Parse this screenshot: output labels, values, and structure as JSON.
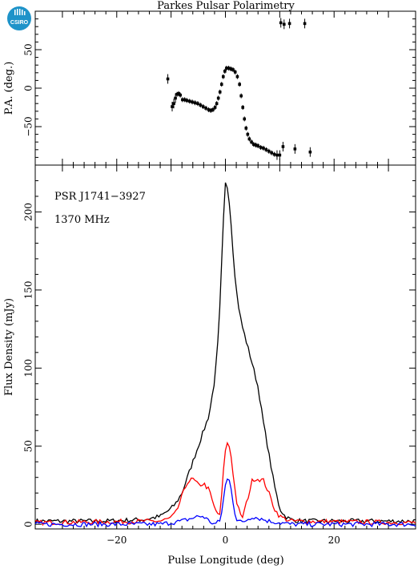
{
  "title": "Parkes Pulsar Polarimetry",
  "logo_text": "CSIRO",
  "chart_data": [
    {
      "type": "scatter",
      "panel": "position-angle",
      "ylabel": "P.A. (deg.)",
      "xlim": [
        -35,
        35
      ],
      "ylim": [
        -100,
        100
      ],
      "yticks": [
        -50,
        0,
        50
      ],
      "xticks": [
        -20,
        0,
        20
      ],
      "grid": false,
      "series": [
        {
          "points": [
            [
              -10.6,
              12
            ],
            [
              -9.8,
              -24
            ],
            [
              -9.5,
              -20
            ],
            [
              -9.2,
              -13
            ],
            [
              -8.9,
              -8
            ],
            [
              -8.6,
              -7
            ],
            [
              -8.3,
              -9
            ],
            [
              -7.9,
              -15
            ],
            [
              -7.5,
              -15
            ],
            [
              -7.1,
              -16
            ],
            [
              -6.6,
              -17
            ],
            [
              -6.1,
              -18
            ],
            [
              -5.6,
              -19
            ],
            [
              -5.1,
              -20
            ],
            [
              -4.6,
              -22
            ],
            [
              -4.1,
              -24
            ],
            [
              -3.6,
              -26
            ],
            [
              -3.1,
              -28
            ],
            [
              -2.7,
              -29
            ],
            [
              -2.3,
              -28
            ],
            [
              -1.9,
              -25
            ],
            [
              -1.6,
              -20
            ],
            [
              -1.3,
              -13
            ],
            [
              -1.0,
              -5
            ],
            [
              -0.7,
              5
            ],
            [
              -0.4,
              15
            ],
            [
              -0.1,
              22
            ],
            [
              0.2,
              26
            ],
            [
              0.6,
              26
            ],
            [
              1.0,
              25
            ],
            [
              1.4,
              24
            ],
            [
              1.8,
              21
            ],
            [
              2.2,
              15
            ],
            [
              2.6,
              5
            ],
            [
              2.9,
              -10
            ],
            [
              3.2,
              -25
            ],
            [
              3.5,
              -40
            ],
            [
              3.8,
              -52
            ],
            [
              4.1,
              -60
            ],
            [
              4.4,
              -66
            ],
            [
              4.8,
              -70
            ],
            [
              5.2,
              -73
            ],
            [
              5.6,
              -74
            ],
            [
              6.0,
              -75
            ],
            [
              6.5,
              -77
            ],
            [
              7.0,
              -78
            ],
            [
              7.5,
              -80
            ],
            [
              8.0,
              -82
            ],
            [
              8.5,
              -84
            ],
            [
              9.0,
              -86
            ],
            [
              9.5,
              -87
            ],
            [
              10.0,
              -87
            ],
            [
              10.2,
              85
            ],
            [
              10.8,
              83
            ],
            [
              11.8,
              84
            ],
            [
              14.6,
              84
            ],
            [
              10.6,
              -76
            ],
            [
              12.8,
              -79
            ],
            [
              15.6,
              -83
            ]
          ]
        }
      ]
    },
    {
      "type": "line",
      "panel": "flux",
      "annotations": [
        "PSR J1741−3927",
        "1370 MHz"
      ],
      "xlabel": "Pulse Longitude (deg)",
      "ylabel": "Flux Density (mJy)",
      "xlim": [
        -35,
        35
      ],
      "ylim": [
        -3,
        230
      ],
      "xticks": [
        -20,
        0,
        20
      ],
      "yticks": [
        0,
        50,
        100,
        150,
        200
      ],
      "grid": false,
      "series": [
        {
          "color": "#000000",
          "x": [
            -35,
            -22,
            -15,
            -12,
            -10,
            -9,
            -8,
            -7,
            -6,
            -5,
            -4,
            -3,
            -2,
            -1.5,
            -1,
            -0.5,
            0,
            0.5,
            1,
            1.5,
            2,
            2.5,
            3,
            4,
            5,
            6,
            7,
            8,
            9,
            10,
            11,
            12,
            14,
            20,
            35
          ],
          "y": [
            2,
            2,
            3,
            5,
            10,
            14,
            20,
            30,
            40,
            50,
            60,
            70,
            92,
            110,
            140,
            185,
            218,
            215,
            195,
            170,
            150,
            138,
            128,
            115,
            102,
            88,
            65,
            45,
            25,
            10,
            5,
            3,
            2,
            2,
            2
          ]
        },
        {
          "color": "#ff0000",
          "x": [
            -35,
            -12,
            -10,
            -9,
            -8,
            -7,
            -6,
            -5,
            -4,
            -3,
            -2,
            -1,
            -0.5,
            0,
            0.5,
            1,
            1.5,
            2,
            3,
            4,
            5,
            6,
            7,
            8,
            9,
            10,
            12,
            35
          ],
          "y": [
            1,
            2,
            4,
            8,
            18,
            27,
            29,
            25,
            26,
            22,
            10,
            5,
            28,
            48,
            53,
            45,
            30,
            15,
            3,
            15,
            29,
            29,
            28,
            20,
            10,
            5,
            2,
            1
          ]
        },
        {
          "color": "#0000ff",
          "x": [
            -35,
            -12,
            -10,
            -8,
            -6,
            -5,
            -4,
            -3,
            -2,
            -1,
            -0.5,
            0,
            0.5,
            1,
            1.5,
            2,
            3,
            4,
            5,
            6,
            8,
            10,
            12,
            35
          ],
          "y": [
            0,
            0,
            1,
            2,
            4,
            5,
            5,
            2,
            0,
            2,
            12,
            25,
            30,
            25,
            12,
            3,
            1,
            3,
            5,
            4,
            2,
            1,
            0,
            0
          ]
        }
      ]
    }
  ]
}
